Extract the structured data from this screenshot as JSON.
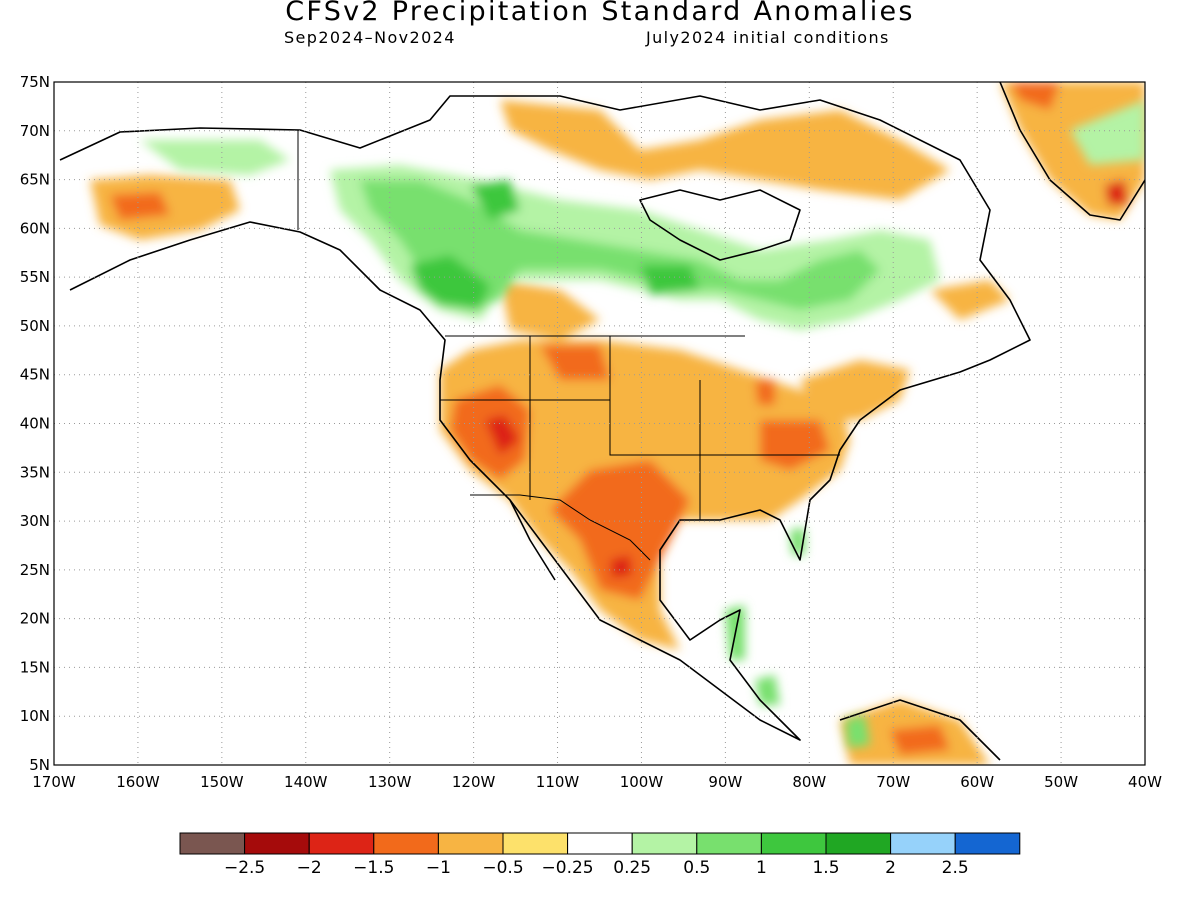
{
  "title": "CFSv2 Precipitation Standard Anomalies",
  "subtitle_left": "Sep2024–Nov2024",
  "subtitle_right": "July2024 initial conditions",
  "map": {
    "lon_range": [
      -170,
      -40
    ],
    "lat_range": [
      5,
      75
    ],
    "lat_labels": [
      "75N",
      "70N",
      "65N",
      "60N",
      "55N",
      "50N",
      "45N",
      "40N",
      "35N",
      "30N",
      "25N",
      "20N",
      "15N",
      "10N",
      "5N"
    ],
    "lon_labels": [
      "170W",
      "160W",
      "150W",
      "140W",
      "130W",
      "120W",
      "110W",
      "100W",
      "90W",
      "80W",
      "70W",
      "60W",
      "50W",
      "40W"
    ],
    "gridlines": "dotted"
  },
  "colorbar": {
    "colors": [
      "#7a5650",
      "#a50b0b",
      "#dd2416",
      "#f26a1b",
      "#f7b443",
      "#fde16b",
      "#ffffff",
      "#b4f3a5",
      "#78e06e",
      "#3ec73e",
      "#20a723",
      "#96d2fa",
      "#1466d2"
    ],
    "labels": [
      "−2.5",
      "−2",
      "−1.5",
      "−1",
      "−0.5",
      "−0.25",
      "0.25",
      "0.5",
      "1",
      "1.5",
      "2",
      "2.5"
    ]
  },
  "anomaly_regions": [
    {
      "name": "southwest-us-dry",
      "level": "-1.5",
      "lon": [
        -123,
        -110
      ],
      "lat": [
        33,
        43
      ]
    },
    {
      "name": "texas-mexico-dry",
      "level": "-1.5",
      "lon": [
        -110,
        -95
      ],
      "lat": [
        20,
        34
      ]
    },
    {
      "name": "central-us-dry",
      "level": "-1",
      "lon": [
        -115,
        -76
      ],
      "lat": [
        30,
        47
      ]
    },
    {
      "name": "canada-prairie-wet",
      "level": "1",
      "lon": [
        -125,
        -85
      ],
      "lat": [
        52,
        62
      ]
    },
    {
      "name": "alaska-dry",
      "level": "-1",
      "lon": [
        -168,
        -142
      ],
      "lat": [
        58,
        66
      ]
    }
  ]
}
